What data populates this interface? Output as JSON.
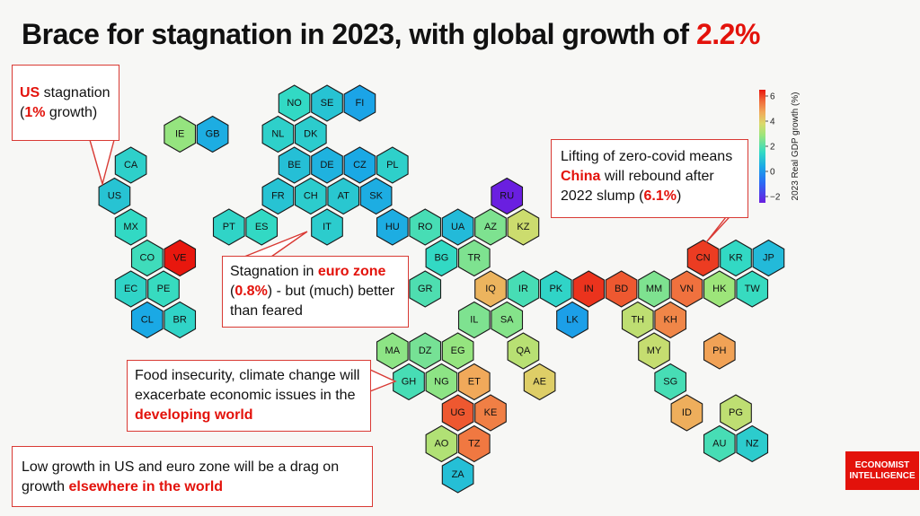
{
  "title": {
    "prefix": "Brace for stagnation in 2023, with global growth of ",
    "highlight": "2.2%"
  },
  "callouts": {
    "us": {
      "red1": "US",
      "t1": " stagnation",
      "t2a": "(",
      "red2": "1%",
      "t2b": " growth)"
    },
    "eurozone": {
      "t1": "Stagnation in ",
      "red1": "euro zone",
      "t2a": "(",
      "red2": "0.8%",
      "t2b": ") - but (much) better",
      "t3": "than feared"
    },
    "china": {
      "t1": "Lifting of zero-covid means",
      "red1": "China",
      "t2": " will rebound after",
      "t3a": "2022 slump (",
      "red2": "6.1%",
      "t3b": ")"
    },
    "developing": {
      "t1": "Food insecurity, climate change will",
      "t2": "exacerbate economic issues in the",
      "red1": "developing world"
    },
    "drag": {
      "t1": "Low growth in US and euro zone will be a drag on",
      "t2a": "growth ",
      "red1": "elsewhere in the world"
    }
  },
  "logo": {
    "line1": "ECONOMIST",
    "line2": "INTELLIGENCE"
  },
  "chart_data": {
    "type": "heatmap",
    "subtype": "hexagonal cartogram",
    "colorbar": {
      "label": "2023 Real GDP growth (%)",
      "ticks": [
        6,
        4,
        2,
        0,
        -2
      ],
      "range": [
        -2.5,
        6.5
      ],
      "colormap": "rainbow (purple-blue-cyan-green-yellow-orange-red)"
    },
    "countries": [
      {
        "code": "NO",
        "growth": 1.5
      },
      {
        "code": "SE",
        "growth": 1.0
      },
      {
        "code": "FI",
        "growth": 0.3
      },
      {
        "code": "IE",
        "growth": 2.8
      },
      {
        "code": "GB",
        "growth": 0.5
      },
      {
        "code": "NL",
        "growth": 1.3
      },
      {
        "code": "DK",
        "growth": 1.2
      },
      {
        "code": "CA",
        "growth": 1.3
      },
      {
        "code": "BE",
        "growth": 0.9
      },
      {
        "code": "DE",
        "growth": 0.6
      },
      {
        "code": "CZ",
        "growth": 0.4
      },
      {
        "code": "PL",
        "growth": 1.3
      },
      {
        "code": "US",
        "growth": 1.0
      },
      {
        "code": "FR",
        "growth": 1.0
      },
      {
        "code": "CH",
        "growth": 1.2
      },
      {
        "code": "AT",
        "growth": 1.1
      },
      {
        "code": "SK",
        "growth": 0.5
      },
      {
        "code": "RU",
        "growth": -2.5
      },
      {
        "code": "MX",
        "growth": 1.5
      },
      {
        "code": "PT",
        "growth": 1.4
      },
      {
        "code": "ES",
        "growth": 1.5
      },
      {
        "code": "IT",
        "growth": 1.2
      },
      {
        "code": "HU",
        "growth": 0.5
      },
      {
        "code": "RO",
        "growth": 1.8
      },
      {
        "code": "UA",
        "growth": 0.8
      },
      {
        "code": "AZ",
        "growth": 2.5
      },
      {
        "code": "KZ",
        "growth": 3.6
      },
      {
        "code": "CO",
        "growth": 1.7
      },
      {
        "code": "VE",
        "growth": 6.5
      },
      {
        "code": "BG",
        "growth": 1.5
      },
      {
        "code": "TR",
        "growth": 2.5
      },
      {
        "code": "CN",
        "growth": 6.1
      },
      {
        "code": "KR",
        "growth": 1.5
      },
      {
        "code": "JP",
        "growth": 0.8
      },
      {
        "code": "EC",
        "growth": 1.4
      },
      {
        "code": "PE",
        "growth": 1.6
      },
      {
        "code": "GR",
        "growth": 1.9
      },
      {
        "code": "IQ",
        "growth": 4.5
      },
      {
        "code": "IR",
        "growth": 1.8
      },
      {
        "code": "PK",
        "growth": 1.4
      },
      {
        "code": "IN",
        "growth": 6.2
      },
      {
        "code": "BD",
        "growth": 5.8
      },
      {
        "code": "MM",
        "growth": 2.5
      },
      {
        "code": "VN",
        "growth": 5.5
      },
      {
        "code": "HK",
        "growth": 2.9
      },
      {
        "code": "TW",
        "growth": 1.6
      },
      {
        "code": "CL",
        "growth": 0.4
      },
      {
        "code": "BR",
        "growth": 1.4
      },
      {
        "code": "IL",
        "growth": 2.5
      },
      {
        "code": "SA",
        "growth": 2.6
      },
      {
        "code": "LK",
        "growth": 0.2
      },
      {
        "code": "TH",
        "growth": 3.4
      },
      {
        "code": "KH",
        "growth": 5.2
      },
      {
        "code": "MA",
        "growth": 2.7
      },
      {
        "code": "DZ",
        "growth": 2.4
      },
      {
        "code": "EG",
        "growth": 2.8
      },
      {
        "code": "QA",
        "growth": 3.3
      },
      {
        "code": "MY",
        "growth": 3.5
      },
      {
        "code": "PH",
        "growth": 4.8
      },
      {
        "code": "GH",
        "growth": 1.8
      },
      {
        "code": "NG",
        "growth": 2.7
      },
      {
        "code": "ET",
        "growth": 4.7
      },
      {
        "code": "AE",
        "growth": 4.0
      },
      {
        "code": "SG",
        "growth": 1.8
      },
      {
        "code": "UG",
        "growth": 5.8
      },
      {
        "code": "KE",
        "growth": 5.3
      },
      {
        "code": "ID",
        "growth": 4.6
      },
      {
        "code": "PG",
        "growth": 3.4
      },
      {
        "code": "AO",
        "growth": 3.2
      },
      {
        "code": "TZ",
        "growth": 5.4
      },
      {
        "code": "AU",
        "growth": 1.8
      },
      {
        "code": "NZ",
        "growth": 1.2
      },
      {
        "code": "ZA",
        "growth": 0.9
      }
    ]
  }
}
